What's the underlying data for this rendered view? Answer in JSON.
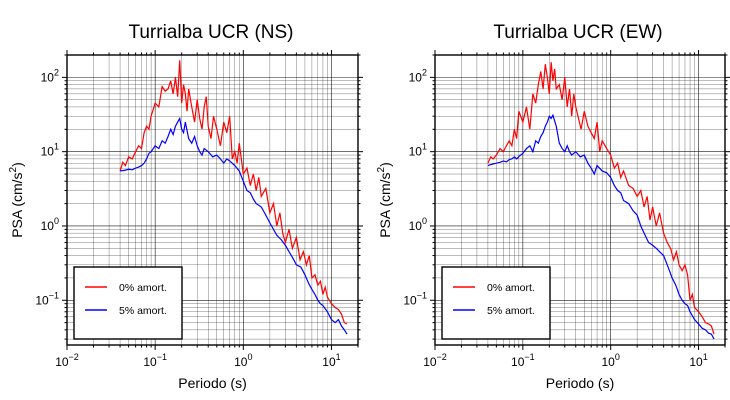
{
  "chart_data": [
    {
      "type": "line",
      "title": "Turrialba UCR (NS)",
      "xlabel": "Periodo (s)",
      "ylabel_main": "PSA (cm/s",
      "ylabel_sup": "2",
      "ylabel_end": ")",
      "xscale": "log",
      "yscale": "log",
      "xlim": [
        0.01,
        20
      ],
      "ylim": [
        0.025,
        200
      ],
      "grid": true,
      "legend_position": "bottom-left",
      "x_ticks": [
        {
          "base": "10",
          "exp": "−2"
        },
        {
          "base": "10",
          "exp": "−1"
        },
        {
          "base": "10",
          "exp": "0"
        },
        {
          "base": "10",
          "exp": "1"
        }
      ],
      "y_ticks": [
        {
          "base": "10",
          "exp": "−1"
        },
        {
          "base": "10",
          "exp": "0"
        },
        {
          "base": "10",
          "exp": "1"
        },
        {
          "base": "10",
          "exp": "2"
        }
      ],
      "series": [
        {
          "name": "0% amort.",
          "color": "#ff0000",
          "x": [
            0.04,
            0.043,
            0.046,
            0.05,
            0.055,
            0.06,
            0.065,
            0.07,
            0.075,
            0.08,
            0.085,
            0.09,
            0.1,
            0.11,
            0.12,
            0.13,
            0.14,
            0.15,
            0.16,
            0.17,
            0.18,
            0.19,
            0.2,
            0.21,
            0.22,
            0.23,
            0.24,
            0.26,
            0.28,
            0.3,
            0.32,
            0.34,
            0.36,
            0.38,
            0.4,
            0.43,
            0.46,
            0.5,
            0.55,
            0.6,
            0.65,
            0.7,
            0.75,
            0.8,
            0.85,
            0.9,
            1.0,
            1.1,
            1.2,
            1.3,
            1.4,
            1.5,
            1.6,
            1.8,
            2.0,
            2.2,
            2.4,
            2.6,
            2.8,
            3.0,
            3.3,
            3.6,
            4.0,
            4.4,
            4.8,
            5.2,
            5.6,
            6.0,
            6.5,
            7.0,
            7.5,
            8.0,
            8.5,
            9.0,
            10,
            11,
            12,
            13,
            14,
            15
          ],
          "y": [
            5.5,
            7.2,
            6.5,
            8.5,
            8,
            10,
            12,
            11,
            18,
            22,
            20,
            30,
            45,
            40,
            75,
            65,
            70,
            90,
            60,
            100,
            55,
            170,
            45,
            80,
            60,
            35,
            70,
            40,
            25,
            50,
            28,
            20,
            40,
            55,
            22,
            15,
            30,
            20,
            12,
            25,
            18,
            30,
            8,
            10,
            7,
            13,
            5,
            6,
            3.5,
            5,
            3,
            4.5,
            2.5,
            3.2,
            1.5,
            2,
            1.0,
            1.5,
            0.8,
            0.6,
            0.9,
            0.5,
            0.7,
            0.35,
            0.45,
            0.3,
            0.4,
            0.2,
            0.22,
            0.16,
            0.18,
            0.12,
            0.15,
            0.11,
            0.09,
            0.08,
            0.075,
            0.065,
            0.05,
            0.048
          ]
        },
        {
          "name": "5% amort.",
          "color": "#0000ff",
          "x": [
            0.04,
            0.045,
            0.05,
            0.055,
            0.06,
            0.065,
            0.07,
            0.075,
            0.08,
            0.085,
            0.09,
            0.1,
            0.11,
            0.12,
            0.13,
            0.14,
            0.15,
            0.16,
            0.17,
            0.18,
            0.19,
            0.2,
            0.21,
            0.22,
            0.24,
            0.26,
            0.28,
            0.3,
            0.32,
            0.34,
            0.36,
            0.4,
            0.45,
            0.5,
            0.55,
            0.6,
            0.65,
            0.7,
            0.8,
            0.9,
            1.0,
            1.1,
            1.2,
            1.3,
            1.4,
            1.6,
            1.8,
            2.0,
            2.2,
            2.4,
            2.7,
            3.0,
            3.3,
            3.6,
            4.0,
            4.5,
            5.0,
            5.5,
            6.0,
            6.5,
            7.0,
            7.5,
            8.0,
            9.0,
            10,
            11,
            12,
            13,
            14,
            15
          ],
          "y": [
            5.5,
            5.6,
            5.8,
            5.7,
            6,
            6.2,
            6.5,
            7,
            8,
            9.5,
            10,
            12,
            11,
            14,
            13,
            16,
            20,
            17,
            22,
            25,
            28,
            20,
            18,
            25,
            15,
            13,
            16,
            12,
            10,
            9,
            11,
            10,
            8.5,
            9,
            8,
            7,
            8,
            7.5,
            6.5,
            5.5,
            4,
            3,
            2.8,
            2.3,
            2.0,
            1.8,
            1.4,
            1.1,
            0.9,
            0.75,
            0.65,
            0.55,
            0.45,
            0.38,
            0.3,
            0.28,
            0.22,
            0.17,
            0.14,
            0.12,
            0.1,
            0.09,
            0.085,
            0.07,
            0.055,
            0.05,
            0.055,
            0.045,
            0.04,
            0.035
          ]
        }
      ]
    },
    {
      "type": "line",
      "title": "Turrialba UCR (EW)",
      "xlabel": "Periodo (s)",
      "ylabel_main": "PSA (cm/s",
      "ylabel_sup": "2",
      "ylabel_end": ")",
      "xscale": "log",
      "yscale": "log",
      "xlim": [
        0.01,
        20
      ],
      "ylim": [
        0.025,
        200
      ],
      "grid": true,
      "legend_position": "bottom-left",
      "x_ticks": [
        {
          "base": "10",
          "exp": "−2"
        },
        {
          "base": "10",
          "exp": "−1"
        },
        {
          "base": "10",
          "exp": "0"
        },
        {
          "base": "10",
          "exp": "1"
        }
      ],
      "y_ticks": [
        {
          "base": "10",
          "exp": "−1"
        },
        {
          "base": "10",
          "exp": "0"
        },
        {
          "base": "10",
          "exp": "1"
        },
        {
          "base": "10",
          "exp": "2"
        }
      ],
      "series": [
        {
          "name": "0% amort.",
          "color": "#ff0000",
          "x": [
            0.04,
            0.043,
            0.046,
            0.05,
            0.055,
            0.06,
            0.065,
            0.07,
            0.075,
            0.08,
            0.085,
            0.09,
            0.1,
            0.11,
            0.12,
            0.13,
            0.14,
            0.15,
            0.16,
            0.17,
            0.18,
            0.19,
            0.2,
            0.21,
            0.22,
            0.23,
            0.24,
            0.26,
            0.28,
            0.3,
            0.32,
            0.34,
            0.36,
            0.38,
            0.4,
            0.43,
            0.46,
            0.5,
            0.55,
            0.6,
            0.65,
            0.7,
            0.75,
            0.8,
            0.9,
            1.0,
            1.1,
            1.2,
            1.3,
            1.4,
            1.6,
            1.8,
            2.0,
            2.2,
            2.4,
            2.6,
            2.8,
            3.0,
            3.3,
            3.6,
            4.0,
            4.4,
            4.8,
            5.2,
            5.6,
            6.0,
            6.5,
            7.0,
            7.5,
            8.0,
            8.5,
            9.0,
            10,
            11,
            12,
            13,
            14,
            15
          ],
          "y": [
            7,
            8.5,
            8,
            9,
            11,
            10,
            12,
            14,
            12,
            20,
            15,
            35,
            25,
            40,
            20,
            60,
            45,
            80,
            120,
            70,
            150,
            100,
            60,
            160,
            90,
            130,
            70,
            80,
            50,
            100,
            40,
            70,
            30,
            60,
            40,
            28,
            20,
            35,
            22,
            18,
            15,
            25,
            10,
            14,
            11,
            9,
            6,
            7,
            4.5,
            5.5,
            3.5,
            3.2,
            2.5,
            3,
            1.8,
            2.5,
            1.2,
            1.8,
            1.0,
            1.5,
            0.8,
            0.6,
            0.5,
            0.35,
            0.45,
            0.3,
            0.25,
            0.3,
            0.22,
            0.1,
            0.12,
            0.08,
            0.07,
            0.06,
            0.05,
            0.048,
            0.045,
            0.035
          ]
        },
        {
          "name": "5% amort.",
          "color": "#0000ff",
          "x": [
            0.04,
            0.045,
            0.05,
            0.055,
            0.06,
            0.065,
            0.07,
            0.075,
            0.08,
            0.085,
            0.09,
            0.1,
            0.11,
            0.12,
            0.13,
            0.14,
            0.15,
            0.16,
            0.17,
            0.18,
            0.19,
            0.2,
            0.21,
            0.22,
            0.24,
            0.26,
            0.28,
            0.3,
            0.32,
            0.34,
            0.36,
            0.4,
            0.45,
            0.5,
            0.55,
            0.6,
            0.65,
            0.7,
            0.8,
            0.9,
            1.0,
            1.1,
            1.2,
            1.3,
            1.4,
            1.6,
            1.8,
            2.0,
            2.2,
            2.4,
            2.7,
            3.0,
            3.3,
            3.6,
            4.0,
            4.5,
            5.0,
            5.5,
            6.0,
            6.5,
            7.0,
            7.5,
            8.0,
            9.0,
            10,
            11,
            12,
            13,
            14,
            15
          ],
          "y": [
            6.5,
            6.8,
            7,
            7.2,
            7.5,
            7.3,
            7.8,
            8,
            8.5,
            8,
            8.6,
            9.5,
            11,
            12,
            10,
            14,
            13,
            16,
            18,
            22,
            25,
            30,
            28,
            31,
            22,
            13,
            11,
            10,
            12,
            10,
            9,
            10,
            8.5,
            9,
            7,
            6,
            5,
            6.5,
            5.5,
            5.2,
            4.5,
            3.5,
            3.0,
            2.8,
            2.2,
            2.0,
            1.6,
            1.4,
            1.0,
            0.8,
            0.6,
            0.55,
            0.5,
            0.45,
            0.4,
            0.28,
            0.2,
            0.16,
            0.12,
            0.1,
            0.09,
            0.085,
            0.07,
            0.055,
            0.048,
            0.042,
            0.04,
            0.036,
            0.035,
            0.03
          ]
        }
      ]
    }
  ]
}
